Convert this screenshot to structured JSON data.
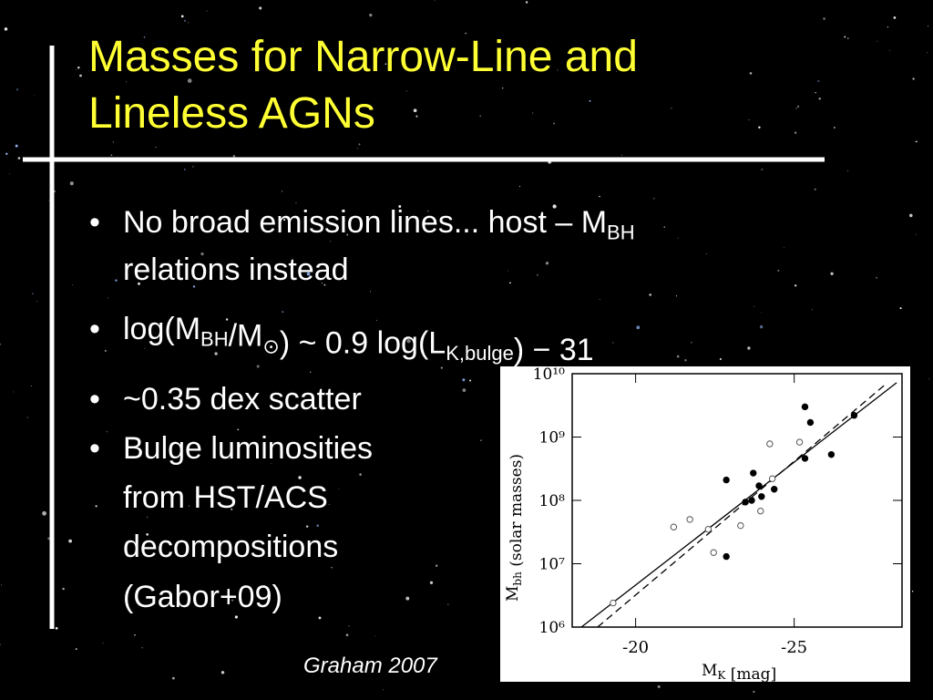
{
  "title": [
    "Masses for Narrow-Line and",
    "Lineless AGNs"
  ],
  "bullets": [
    {
      "lines": [
        [
          "No broad emission lines... host – M",
          {
            "sub": "BH"
          }
        ],
        [
          "relations instead"
        ]
      ]
    },
    {
      "lines": [
        [
          "log(M",
          {
            "sub": "BH"
          },
          "/M",
          {
            "sub": "⊙"
          },
          ") ~ 0.9 log(L",
          {
            "sub": "K,bulge"
          },
          ") − 31"
        ]
      ]
    },
    {
      "lines": [
        [
          "~0.35 dex scatter"
        ]
      ]
    },
    {
      "lines": [
        [
          "Bulge luminosities"
        ],
        [
          "from HST/ACS"
        ],
        [
          "decompositions"
        ],
        [
          "(Gabor+09)"
        ]
      ]
    }
  ],
  "caption": "Graham 2007",
  "chart_data": {
    "type": "scatter",
    "x_label": [
      "M",
      {
        "sub": "K"
      },
      " [mag]"
    ],
    "y_label": [
      "M",
      {
        "sub": "bh"
      },
      " (solar masses)"
    ],
    "xlim": [
      -18,
      -28.4
    ],
    "xticks": [
      -20,
      -25
    ],
    "ylim": [
      1000000,
      10000000000
    ],
    "log_y": true,
    "yticks": [
      {
        "value": 1000000,
        "label": "10⁶"
      },
      {
        "value": 10000000,
        "label": "10⁷"
      },
      {
        "value": 100000000,
        "label": "10⁸"
      },
      {
        "value": 1000000000,
        "label": "10⁹"
      },
      {
        "value": 10000000000,
        "label": "10¹⁰"
      }
    ],
    "series": [
      {
        "marker": "filled",
        "color": "#000",
        "x": [
          -25.34,
          -25.51,
          -26.89,
          -26.17,
          -25.34,
          -22.86,
          -23.71,
          -23.89,
          -24.37,
          -23.66,
          -23.46,
          -23.97,
          -22.86
        ],
        "values": [
          3000000000,
          1700000000,
          2200000000,
          530000000,
          460000000,
          210000000,
          270000000,
          170000000,
          150000000,
          100000000,
          94000000,
          115000000,
          13000000
        ]
      },
      {
        "marker": "open",
        "color": "#555",
        "x": [
          -24.23,
          -25.17,
          -24.31,
          -21.2,
          -22.29,
          -23.31,
          -23.94,
          -21.71,
          -22.46,
          -19.29
        ],
        "values": [
          780000000,
          830000000,
          220000000,
          38000000,
          35000000,
          40000000,
          68000000,
          50000000,
          15000000,
          2400000
        ]
      }
    ],
    "fits": [
      {
        "style": "solid",
        "x": [
          -18.29,
          -28.23
        ],
        "values": [
          1000000,
          7200000000
        ]
      },
      {
        "style": "dashed",
        "x": [
          -18.8,
          -27.94
        ],
        "values": [
          1000000,
          7200000000
        ]
      }
    ]
  }
}
